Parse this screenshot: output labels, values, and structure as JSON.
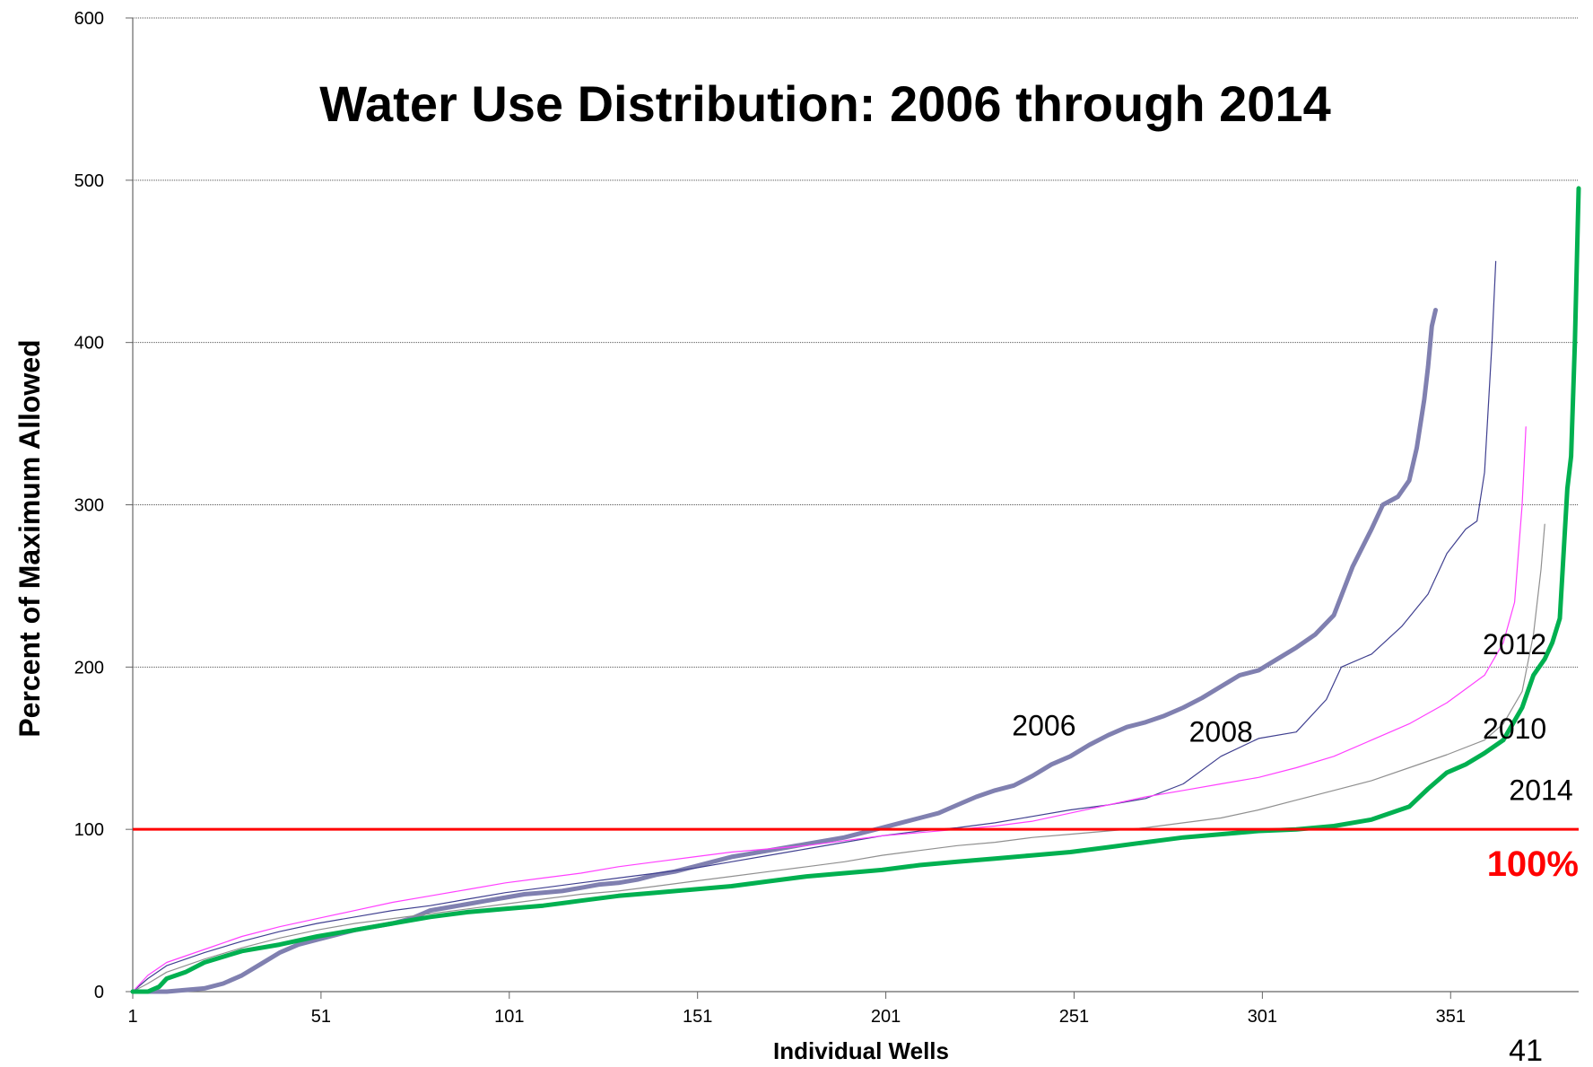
{
  "chart_data": {
    "type": "line",
    "title": "Water Use Distribution: 2006 through 2014",
    "xlabel": "Individual Wells",
    "ylabel": "Percent of Maximum Allowed",
    "xlim": [
      1,
      385
    ],
    "ylim": [
      0,
      600
    ],
    "x_ticks": [
      "1",
      "51",
      "101",
      "151",
      "201",
      "251",
      "301",
      "351"
    ],
    "y_ticks": [
      "0",
      "100",
      "200",
      "300",
      "400",
      "500",
      "600"
    ],
    "grid": "horizontal",
    "reference_line": {
      "value": 100,
      "label": "100%",
      "color": "#ff0000"
    },
    "page_number": "41",
    "series": [
      {
        "name": "2006",
        "color": "#8080b0",
        "points": [
          [
            1,
            0
          ],
          [
            10,
            0
          ],
          [
            20,
            2
          ],
          [
            25,
            5
          ],
          [
            30,
            10
          ],
          [
            35,
            17
          ],
          [
            40,
            24
          ],
          [
            45,
            29
          ],
          [
            50,
            32
          ],
          [
            55,
            35
          ],
          [
            60,
            38
          ],
          [
            65,
            40
          ],
          [
            70,
            42
          ],
          [
            75,
            45
          ],
          [
            80,
            50
          ],
          [
            85,
            52
          ],
          [
            90,
            54
          ],
          [
            95,
            56
          ],
          [
            100,
            58
          ],
          [
            105,
            60
          ],
          [
            110,
            61
          ],
          [
            115,
            62
          ],
          [
            120,
            64
          ],
          [
            125,
            66
          ],
          [
            130,
            67
          ],
          [
            135,
            69
          ],
          [
            140,
            72
          ],
          [
            145,
            74
          ],
          [
            150,
            77
          ],
          [
            155,
            80
          ],
          [
            160,
            83
          ],
          [
            165,
            85
          ],
          [
            170,
            87
          ],
          [
            175,
            89
          ],
          [
            180,
            91
          ],
          [
            185,
            93
          ],
          [
            190,
            95
          ],
          [
            195,
            98
          ],
          [
            200,
            101
          ],
          [
            205,
            104
          ],
          [
            210,
            107
          ],
          [
            215,
            110
          ],
          [
            220,
            115
          ],
          [
            225,
            120
          ],
          [
            230,
            124
          ],
          [
            235,
            127
          ],
          [
            240,
            133
          ],
          [
            245,
            140
          ],
          [
            250,
            145
          ],
          [
            255,
            152
          ],
          [
            260,
            158
          ],
          [
            265,
            163
          ],
          [
            270,
            166
          ],
          [
            275,
            170
          ],
          [
            280,
            175
          ],
          [
            285,
            181
          ],
          [
            290,
            188
          ],
          [
            295,
            195
          ],
          [
            300,
            198
          ],
          [
            305,
            205
          ],
          [
            310,
            212
          ],
          [
            315,
            220
          ],
          [
            320,
            232
          ],
          [
            325,
            262
          ],
          [
            330,
            285
          ],
          [
            333,
            300
          ],
          [
            337,
            305
          ],
          [
            340,
            315
          ],
          [
            342,
            335
          ],
          [
            344,
            365
          ],
          [
            345,
            385
          ],
          [
            346,
            410
          ],
          [
            347,
            420
          ]
        ]
      },
      {
        "name": "2008",
        "color": "#404090",
        "points": [
          [
            1,
            0
          ],
          [
            5,
            8
          ],
          [
            10,
            16
          ],
          [
            20,
            24
          ],
          [
            30,
            31
          ],
          [
            40,
            37
          ],
          [
            50,
            42
          ],
          [
            60,
            46
          ],
          [
            70,
            50
          ],
          [
            80,
            53
          ],
          [
            90,
            57
          ],
          [
            100,
            61
          ],
          [
            110,
            64
          ],
          [
            120,
            67
          ],
          [
            130,
            70
          ],
          [
            140,
            73
          ],
          [
            150,
            76
          ],
          [
            160,
            80
          ],
          [
            170,
            84
          ],
          [
            180,
            88
          ],
          [
            190,
            92
          ],
          [
            200,
            96
          ],
          [
            210,
            99
          ],
          [
            220,
            101
          ],
          [
            230,
            104
          ],
          [
            240,
            108
          ],
          [
            250,
            112
          ],
          [
            260,
            115
          ],
          [
            270,
            119
          ],
          [
            280,
            128
          ],
          [
            290,
            145
          ],
          [
            300,
            156
          ],
          [
            310,
            160
          ],
          [
            318,
            180
          ],
          [
            322,
            200
          ],
          [
            330,
            208
          ],
          [
            338,
            225
          ],
          [
            345,
            245
          ],
          [
            350,
            270
          ],
          [
            355,
            285
          ],
          [
            358,
            290
          ],
          [
            360,
            320
          ],
          [
            362,
            400
          ],
          [
            363,
            450
          ]
        ]
      },
      {
        "name": "2010",
        "color": "#909090",
        "points": [
          [
            1,
            0
          ],
          [
            5,
            5
          ],
          [
            10,
            12
          ],
          [
            20,
            20
          ],
          [
            30,
            27
          ],
          [
            40,
            33
          ],
          [
            50,
            38
          ],
          [
            60,
            42
          ],
          [
            70,
            45
          ],
          [
            80,
            48
          ],
          [
            90,
            51
          ],
          [
            100,
            54
          ],
          [
            110,
            57
          ],
          [
            120,
            60
          ],
          [
            130,
            62
          ],
          [
            140,
            65
          ],
          [
            150,
            68
          ],
          [
            160,
            71
          ],
          [
            170,
            74
          ],
          [
            180,
            77
          ],
          [
            190,
            80
          ],
          [
            200,
            84
          ],
          [
            210,
            87
          ],
          [
            220,
            90
          ],
          [
            230,
            92
          ],
          [
            240,
            95
          ],
          [
            250,
            97
          ],
          [
            260,
            99
          ],
          [
            270,
            101
          ],
          [
            280,
            104
          ],
          [
            290,
            107
          ],
          [
            300,
            112
          ],
          [
            310,
            118
          ],
          [
            320,
            124
          ],
          [
            330,
            130
          ],
          [
            340,
            138
          ],
          [
            350,
            146
          ],
          [
            360,
            155
          ],
          [
            365,
            165
          ],
          [
            370,
            185
          ],
          [
            373,
            220
          ],
          [
            375,
            260
          ],
          [
            376,
            288
          ]
        ]
      },
      {
        "name": "2012",
        "color": "#ff40ff",
        "points": [
          [
            1,
            0
          ],
          [
            5,
            10
          ],
          [
            10,
            18
          ],
          [
            20,
            26
          ],
          [
            30,
            34
          ],
          [
            40,
            40
          ],
          [
            50,
            45
          ],
          [
            60,
            50
          ],
          [
            70,
            55
          ],
          [
            80,
            59
          ],
          [
            90,
            63
          ],
          [
            100,
            67
          ],
          [
            110,
            70
          ],
          [
            120,
            73
          ],
          [
            130,
            77
          ],
          [
            140,
            80
          ],
          [
            150,
            83
          ],
          [
            160,
            86
          ],
          [
            170,
            88
          ],
          [
            180,
            90
          ],
          [
            190,
            93
          ],
          [
            200,
            96
          ],
          [
            210,
            98
          ],
          [
            220,
            100
          ],
          [
            230,
            102
          ],
          [
            240,
            105
          ],
          [
            250,
            110
          ],
          [
            260,
            115
          ],
          [
            270,
            120
          ],
          [
            280,
            124
          ],
          [
            290,
            128
          ],
          [
            300,
            132
          ],
          [
            310,
            138
          ],
          [
            320,
            145
          ],
          [
            330,
            155
          ],
          [
            340,
            165
          ],
          [
            350,
            178
          ],
          [
            360,
            195
          ],
          [
            365,
            215
          ],
          [
            368,
            240
          ],
          [
            370,
            300
          ],
          [
            371,
            348
          ]
        ]
      },
      {
        "name": "2014",
        "color": "#00b050",
        "points": [
          [
            1,
            0
          ],
          [
            5,
            0
          ],
          [
            8,
            3
          ],
          [
            10,
            8
          ],
          [
            15,
            12
          ],
          [
            20,
            18
          ],
          [
            30,
            25
          ],
          [
            40,
            29
          ],
          [
            50,
            34
          ],
          [
            60,
            38
          ],
          [
            70,
            42
          ],
          [
            80,
            46
          ],
          [
            90,
            49
          ],
          [
            100,
            51
          ],
          [
            110,
            53
          ],
          [
            120,
            56
          ],
          [
            130,
            59
          ],
          [
            140,
            61
          ],
          [
            150,
            63
          ],
          [
            160,
            65
          ],
          [
            170,
            68
          ],
          [
            180,
            71
          ],
          [
            190,
            73
          ],
          [
            200,
            75
          ],
          [
            210,
            78
          ],
          [
            220,
            80
          ],
          [
            230,
            82
          ],
          [
            240,
            84
          ],
          [
            250,
            86
          ],
          [
            260,
            89
          ],
          [
            270,
            92
          ],
          [
            280,
            95
          ],
          [
            290,
            97
          ],
          [
            300,
            99
          ],
          [
            310,
            100
          ],
          [
            320,
            102
          ],
          [
            330,
            106
          ],
          [
            340,
            114
          ],
          [
            345,
            125
          ],
          [
            350,
            135
          ],
          [
            355,
            140
          ],
          [
            360,
            147
          ],
          [
            365,
            155
          ],
          [
            370,
            175
          ],
          [
            373,
            195
          ],
          [
            376,
            205
          ],
          [
            378,
            215
          ],
          [
            380,
            230
          ],
          [
            382,
            310
          ],
          [
            383,
            330
          ],
          [
            384,
            400
          ],
          [
            385,
            495
          ]
        ]
      }
    ],
    "series_label_anchors": [
      {
        "name": "2006",
        "x": 243,
        "y": 158
      },
      {
        "name": "2008",
        "x": 290,
        "y": 154
      },
      {
        "name": "2012",
        "x": 368,
        "y": 208
      },
      {
        "name": "2010",
        "x": 368,
        "y": 156
      },
      {
        "name": "2014",
        "x": 375,
        "y": 118
      }
    ]
  }
}
